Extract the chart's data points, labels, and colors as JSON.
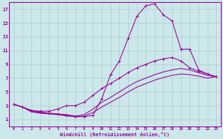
{
  "xlabel": "Windchill (Refroidissement éolien,°C)",
  "bg_color": "#cce8ea",
  "grid_color": "#aacccc",
  "line_color": "#990099",
  "xlim": [
    -0.5,
    23.5
  ],
  "ylim": [
    0,
    18
  ],
  "xticks": [
    0,
    1,
    2,
    3,
    4,
    5,
    6,
    7,
    8,
    9,
    10,
    11,
    12,
    13,
    14,
    15,
    16,
    17,
    18,
    19,
    20,
    21,
    22,
    23
  ],
  "yticks": [
    1,
    3,
    5,
    7,
    9,
    11,
    13,
    15,
    17
  ],
  "curve1_x": [
    0,
    1,
    2,
    3,
    4,
    5,
    6,
    7,
    8,
    9,
    10,
    11,
    12,
    13,
    14,
    15,
    16,
    17,
    18,
    19,
    20,
    21,
    22,
    23
  ],
  "curve1_y": [
    3.2,
    2.8,
    2.3,
    2.1,
    1.9,
    1.8,
    1.6,
    1.4,
    1.4,
    1.6,
    4.0,
    7.5,
    9.5,
    12.8,
    16.0,
    17.5,
    17.8,
    16.2,
    15.3,
    11.2,
    11.2,
    8.2,
    7.6,
    7.2
  ],
  "curve2_x": [
    0,
    1,
    2,
    3,
    4,
    5,
    6,
    7,
    8,
    9,
    10,
    11,
    12,
    13,
    14,
    15,
    16,
    17,
    18,
    19,
    20,
    21,
    22,
    23
  ],
  "curve2_y": [
    3.2,
    2.8,
    2.3,
    2.2,
    2.2,
    2.5,
    3.0,
    3.0,
    3.5,
    4.5,
    5.5,
    6.2,
    7.0,
    7.8,
    8.5,
    9.0,
    9.5,
    9.8,
    10.0,
    9.5,
    8.5,
    8.0,
    7.6,
    7.2
  ],
  "curve3_x": [
    0,
    1,
    2,
    3,
    4,
    5,
    6,
    7,
    8,
    9,
    10,
    11,
    12,
    13,
    14,
    15,
    16,
    17,
    18,
    19,
    20,
    21,
    22,
    23
  ],
  "curve3_y": [
    3.2,
    2.8,
    2.2,
    2.0,
    1.9,
    1.8,
    1.7,
    1.5,
    1.7,
    2.5,
    3.5,
    4.2,
    5.0,
    5.8,
    6.5,
    7.0,
    7.5,
    7.9,
    8.2,
    8.4,
    8.2,
    7.8,
    7.4,
    7.2
  ],
  "curve4_x": [
    0,
    1,
    2,
    3,
    4,
    5,
    6,
    7,
    8,
    9,
    10,
    11,
    12,
    13,
    14,
    15,
    16,
    17,
    18,
    19,
    20,
    21,
    22,
    23
  ],
  "curve4_y": [
    3.2,
    2.8,
    2.1,
    1.9,
    1.8,
    1.7,
    1.5,
    1.4,
    1.5,
    2.0,
    2.8,
    3.5,
    4.2,
    5.0,
    5.7,
    6.2,
    6.7,
    7.1,
    7.4,
    7.6,
    7.5,
    7.3,
    7.0,
    7.2
  ]
}
